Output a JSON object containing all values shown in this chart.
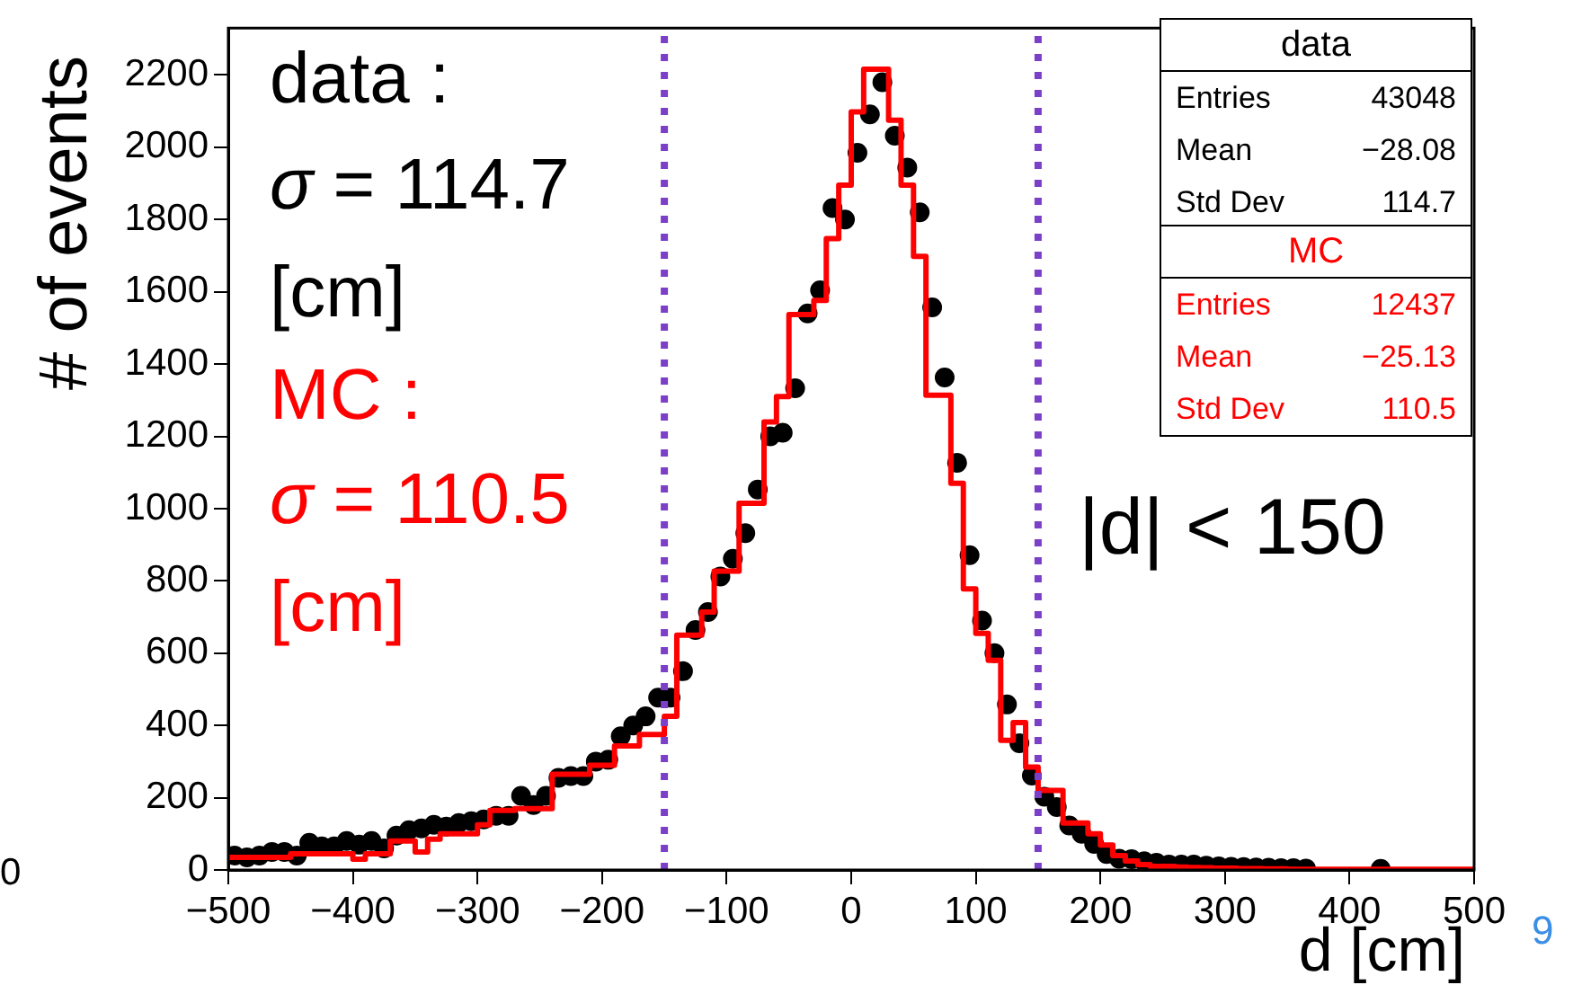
{
  "chart_data": {
    "type": "histogram",
    "xlabel": "d [cm]",
    "ylabel": "# of events",
    "xlim": [
      -500,
      500
    ],
    "ylim": [
      0,
      2330
    ],
    "xticks": [
      -500,
      -400,
      -300,
      -200,
      -100,
      0,
      100,
      200,
      300,
      400,
      500
    ],
    "yticks": [
      0,
      200,
      400,
      600,
      800,
      1000,
      1200,
      1400,
      1600,
      1800,
      2000,
      2200
    ],
    "grid": false,
    "legend": false,
    "bins": [
      -500,
      -490,
      -480,
      -470,
      -460,
      -450,
      -440,
      -430,
      -420,
      -410,
      -400,
      -390,
      -380,
      -370,
      -360,
      -350,
      -340,
      -330,
      -320,
      -310,
      -300,
      -290,
      -280,
      -270,
      -260,
      -250,
      -240,
      -230,
      -220,
      -210,
      -200,
      -190,
      -180,
      -170,
      -160,
      -150,
      -140,
      -130,
      -120,
      -110,
      -100,
      -90,
      -80,
      -70,
      -60,
      -50,
      -40,
      -30,
      -20,
      -10,
      0,
      10,
      20,
      30,
      40,
      50,
      60,
      70,
      80,
      90,
      100,
      110,
      120,
      130,
      140,
      150,
      160,
      170,
      180,
      190,
      200,
      210,
      220,
      230,
      240,
      250,
      260,
      270,
      280,
      290,
      300,
      310,
      320,
      330,
      340,
      350,
      360,
      370,
      380,
      390,
      400,
      410,
      420,
      430,
      440,
      450,
      460,
      470,
      480,
      490,
      500
    ],
    "series": [
      {
        "name": "MC",
        "type": "histogram",
        "color": "#ff0000",
        "values": [
          35,
          35,
          35,
          35,
          35,
          45,
          45,
          45,
          45,
          45,
          30,
          45,
          45,
          80,
          80,
          50,
          85,
          100,
          100,
          100,
          125,
          165,
          165,
          170,
          170,
          170,
          265,
          265,
          265,
          290,
          290,
          343,
          343,
          375,
          375,
          425,
          650,
          650,
          714,
          827,
          827,
          1015,
          1015,
          1240,
          1310,
          1537,
          1537,
          1576,
          1747,
          1895,
          2098,
          2216,
          2216,
          2075,
          1895,
          1698,
          1314,
          1314,
          1070,
          778,
          655,
          580,
          359,
          408,
          285,
          220,
          220,
          130,
          130,
          100,
          69,
          40,
          25,
          15,
          10,
          10,
          8,
          7,
          6,
          5,
          5,
          4,
          4,
          3,
          3,
          2,
          2,
          2,
          2,
          2,
          2,
          2,
          2,
          2,
          2,
          2,
          2,
          2,
          2,
          2
        ]
      },
      {
        "name": "data",
        "type": "scatter",
        "color": "#000000",
        "marker": "circle",
        "x": [
          -495,
          -485,
          -475,
          -465,
          -455,
          -445,
          -435,
          -425,
          -415,
          -405,
          -395,
          -385,
          -375,
          -365,
          -355,
          -345,
          -335,
          -325,
          -315,
          -305,
          -295,
          -285,
          -275,
          -265,
          -255,
          -245,
          -235,
          -225,
          -215,
          -205,
          -195,
          -185,
          -175,
          -165,
          -155,
          -145,
          -135,
          -125,
          -115,
          -105,
          -95,
          -85,
          -75,
          -65,
          -55,
          -45,
          -35,
          -25,
          -15,
          -5,
          5,
          15,
          25,
          35,
          45,
          55,
          65,
          75,
          85,
          95,
          105,
          115,
          125,
          135,
          145,
          155,
          165,
          175,
          185,
          195,
          205,
          215,
          225,
          235,
          245,
          255,
          265,
          275,
          285,
          295,
          305,
          315,
          325,
          335,
          345,
          355,
          365,
          425
        ],
        "values": [
          40,
          35,
          40,
          50,
          50,
          40,
          75,
          65,
          65,
          80,
          70,
          80,
          60,
          95,
          110,
          115,
          125,
          120,
          130,
          135,
          140,
          150,
          150,
          205,
          180,
          205,
          255,
          260,
          260,
          300,
          305,
          370,
          400,
          425,
          477,
          477,
          550,
          664,
          714,
          812,
          861,
          932,
          1053,
          1200,
          1210,
          1333,
          1540,
          1604,
          1832,
          1800,
          1985,
          2091,
          2180,
          2032,
          1944,
          1820,
          1557,
          1363,
          1127,
          871,
          690,
          600,
          458,
          351,
          261,
          203,
          174,
          123,
          100,
          72,
          44,
          31,
          30,
          24,
          20,
          15,
          15,
          15,
          12,
          10,
          9,
          8,
          7,
          6,
          5,
          5,
          4,
          3
        ]
      }
    ],
    "ref_lines": [
      {
        "axis": "x",
        "value": -150,
        "color": "#7b3fc8",
        "line_style": "dotted"
      },
      {
        "axis": "x",
        "value": 150,
        "color": "#7b3fc8",
        "line_style": "dotted"
      }
    ],
    "annotations": [
      "data :",
      "σ = 114.7",
      "[cm]",
      "MC :",
      "σ = 110.5",
      "[cm]",
      "|d| < 150",
      "Entries",
      "43048",
      "Mean",
      "−28.08",
      "Std Dev",
      "114.7",
      "Entries",
      "12437",
      "Mean",
      "−25.13",
      "Std Dev",
      "110.5",
      "0",
      "9"
    ]
  }
}
